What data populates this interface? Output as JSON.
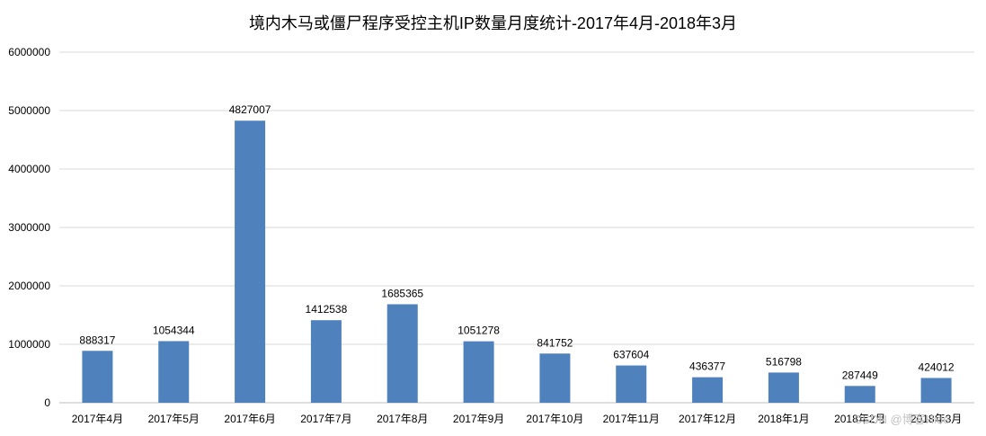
{
  "chart_data": {
    "type": "bar",
    "title": "境内木马或僵尸程序受控主机IP数量月度统计-2017年4月-2018年3月",
    "xlabel": "",
    "ylabel": "",
    "categories": [
      "2017年4月",
      "2017年5月",
      "2017年6月",
      "2017年7月",
      "2017年8月",
      "2017年9月",
      "2017年10月",
      "2017年11月",
      "2017年12月",
      "2018年1月",
      "2018年2月",
      "2018年3月"
    ],
    "values": [
      888317,
      1054344,
      4827007,
      1412538,
      1685365,
      1051278,
      841752,
      637604,
      436377,
      516798,
      287449,
      424012
    ],
    "ylim": [
      0,
      6000000
    ],
    "yticks": [
      "0",
      "1000000",
      "2000000",
      "3000000",
      "4000000",
      "5000000",
      "6000000"
    ],
    "grid": true,
    "legend": "none",
    "bar_color": "#4f81bd"
  },
  "watermark": "CSDN @博客Hide"
}
